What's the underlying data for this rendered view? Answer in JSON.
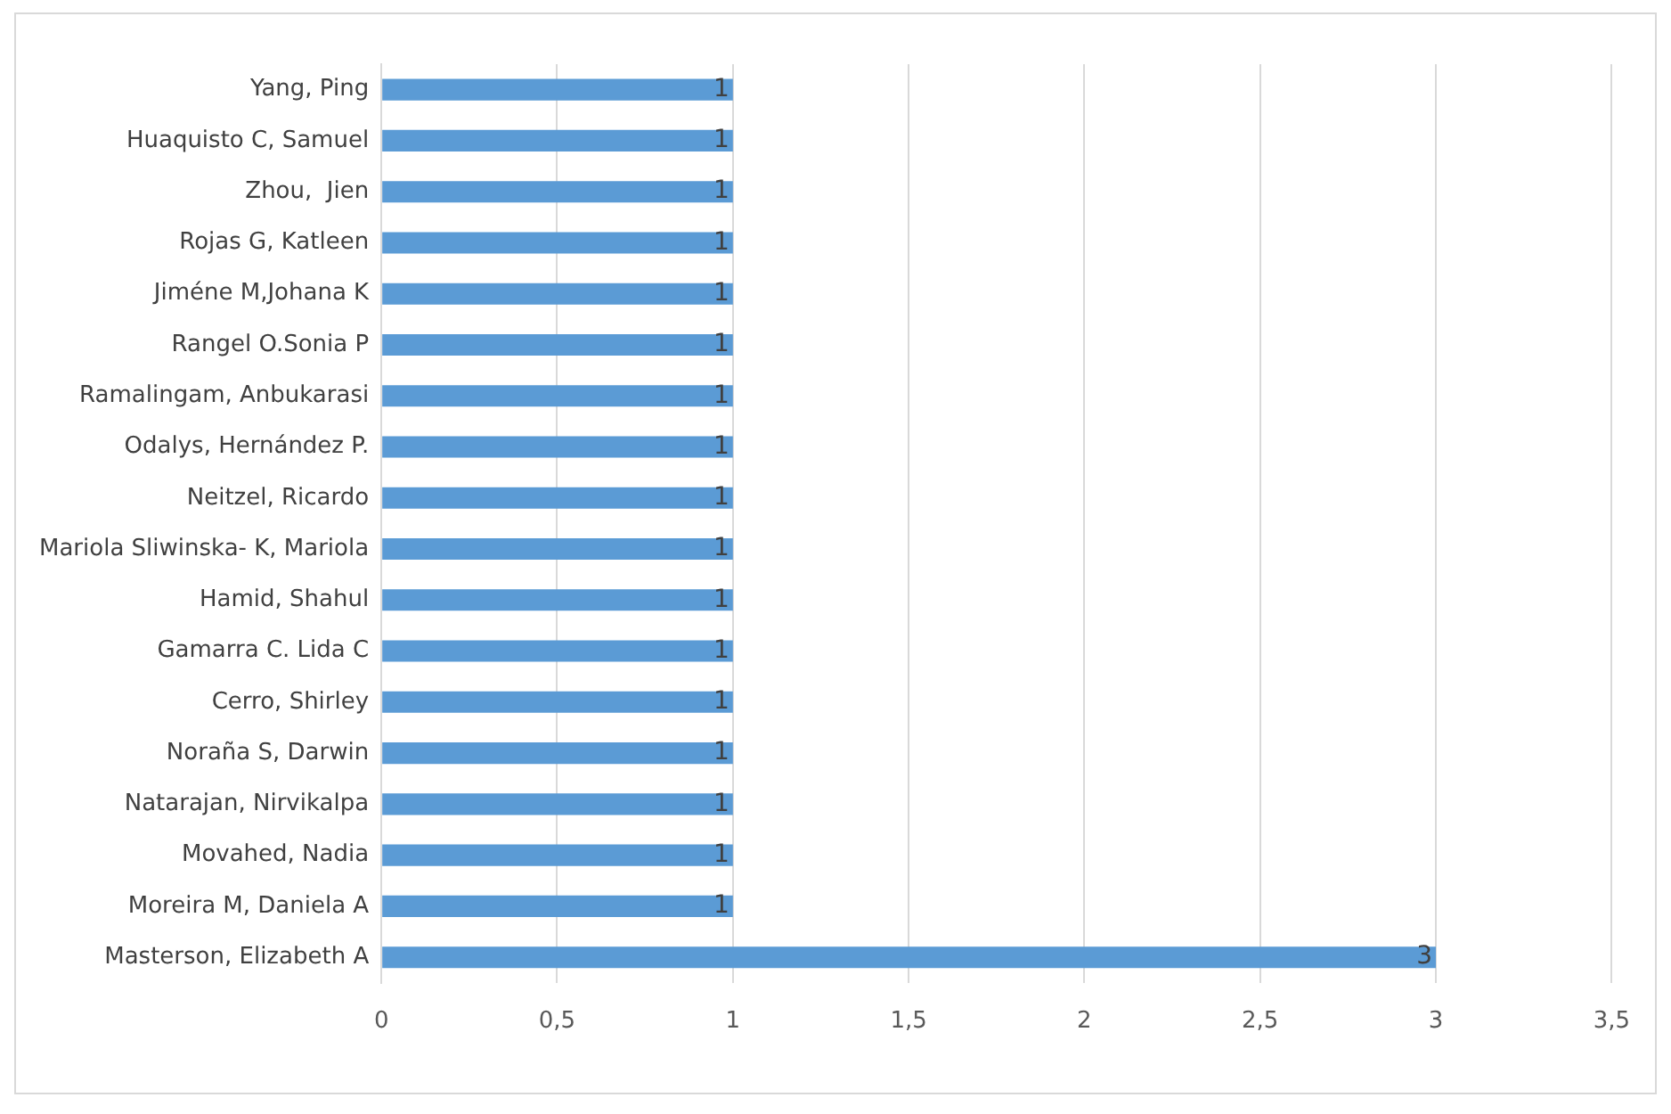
{
  "chart_data": {
    "type": "bar",
    "orientation": "horizontal",
    "categories": [
      "Yang, Ping",
      "Huaquisto C, Samuel",
      "Zhou,  Jien",
      "Rojas G, Katleen",
      "Jiméne M,Johana K",
      "Rangel O.Sonia P",
      "Ramalingam, Anbukarasi",
      "Odalys, Hernández P.",
      "Neitzel, Ricardo",
      "Mariola Sliwinska- K, Mariola",
      "Hamid, Shahul",
      "Gamarra C. Lida C",
      "Cerro, Shirley",
      "Noraña S, Darwin",
      "Natarajan, Nirvikalpa",
      "Movahed, Nadia",
      "Moreira M, Daniela A",
      "Masterson, Elizabeth A"
    ],
    "values": [
      1,
      1,
      1,
      1,
      1,
      1,
      1,
      1,
      1,
      1,
      1,
      1,
      1,
      1,
      1,
      1,
      1,
      3
    ],
    "color": "#5b9bd5",
    "xlim": [
      0,
      3.5
    ],
    "xticks": [
      0,
      {
        "value": 0.5,
        "label": "0,5"
      },
      1,
      {
        "value": 1.5,
        "label": "1,5"
      },
      2,
      {
        "value": 2.5,
        "label": "2,5"
      },
      3,
      {
        "value": 3.5,
        "label": "3,5"
      }
    ],
    "grid": "x",
    "legend": false,
    "data_labels": true
  }
}
